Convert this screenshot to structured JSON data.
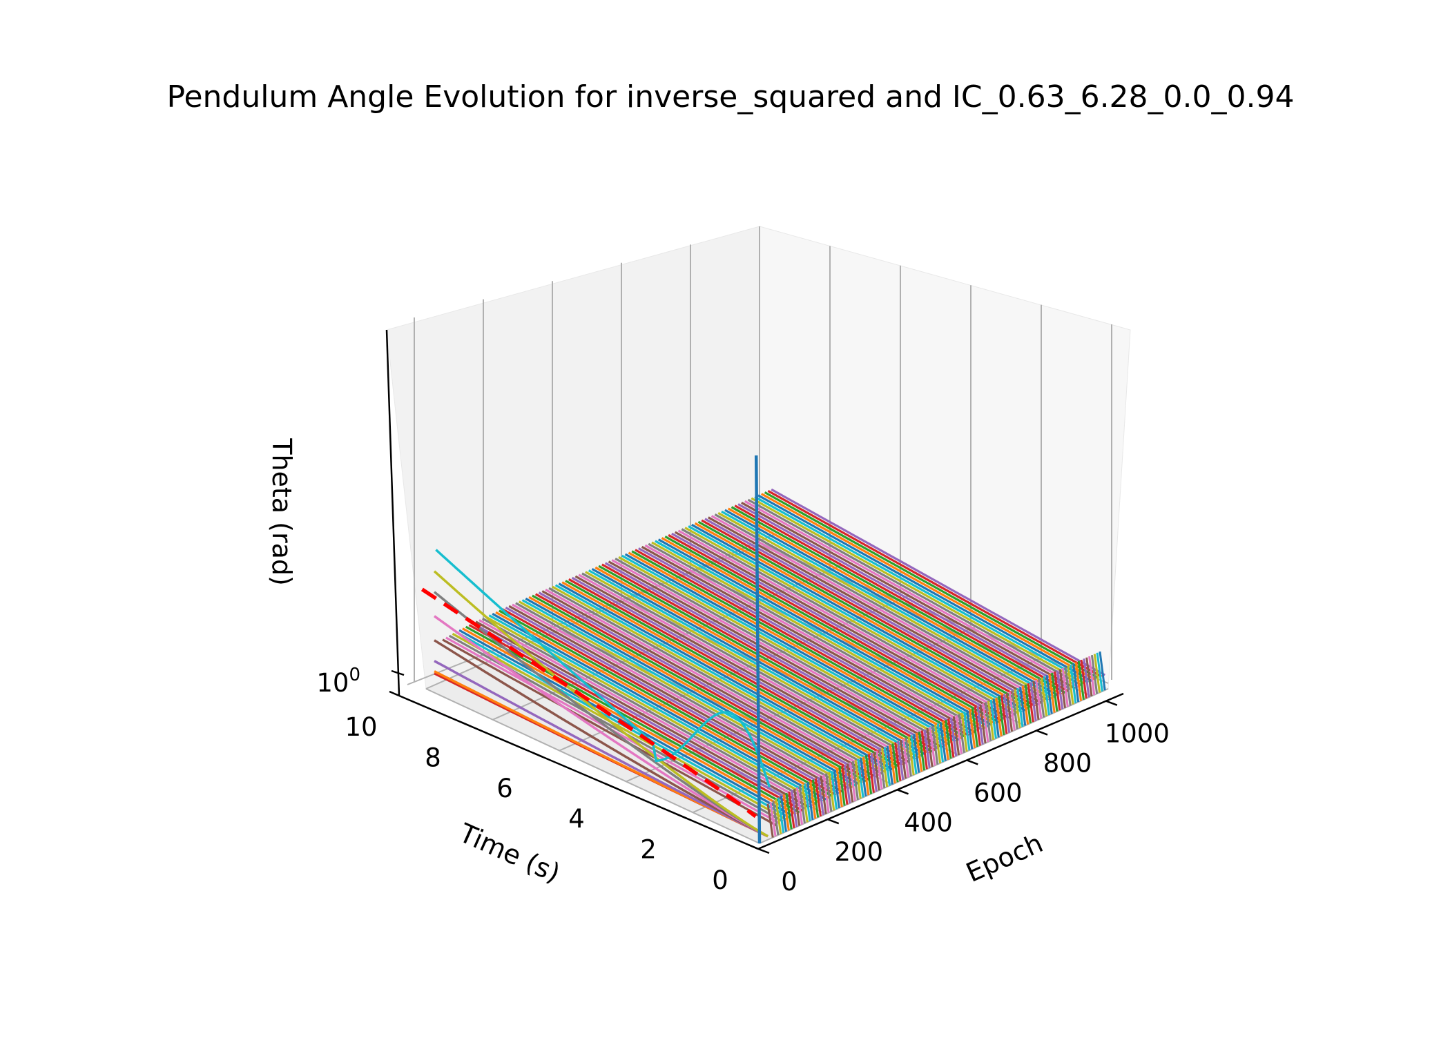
{
  "chart_data": {
    "type": "line",
    "projection": "3d",
    "title": "Pendulum Angle Evolution for inverse_squared and IC_0.63_6.28_0.0_0.94",
    "xlabel": "Epoch",
    "ylabel": "Time (s)",
    "zlabel": "Theta (rad)",
    "z_scale": "log",
    "xlim": [
      0,
      1050
    ],
    "ylim": [
      0,
      10
    ],
    "x_ticks": [
      "0",
      "200",
      "400",
      "600",
      "800",
      "1000"
    ],
    "y_ticks": [
      "0",
      "2",
      "4",
      "6",
      "8",
      "10"
    ],
    "z_ticks": [
      {
        "base": "10",
        "exponent": "0"
      }
    ],
    "grid": true,
    "legend": "none",
    "series": [
      {
        "description": "one theta(t) curve per training epoch, drawn as a dense sheet of lines",
        "epochs": [
          0,
          1000
        ],
        "theta_at_t0": 0.63,
        "theta_at_t10": 0.85
      },
      {
        "description": "early epochs 0-40 diverge from the sheet",
        "epochs": [
          0,
          40
        ]
      },
      {
        "description": "reference true trajectory at the final epoch",
        "style": "dashed",
        "color": "#ff0000"
      }
    ],
    "palette": [
      "#1f77b4",
      "#ff7f0e",
      "#2ca02c",
      "#d62728",
      "#9467bd",
      "#8c564b",
      "#e377c2",
      "#7f7f7f",
      "#bcbd22",
      "#17becf"
    ]
  }
}
